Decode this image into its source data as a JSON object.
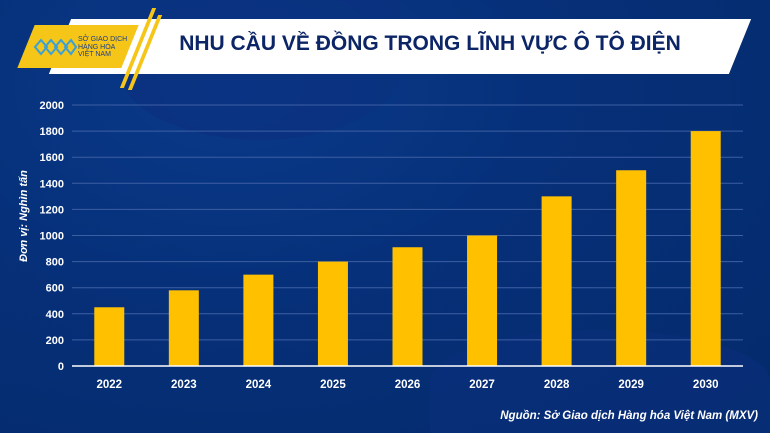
{
  "header": {
    "title": "NHU CẦU VỀ ĐỒNG TRONG LĨNH VỰC Ô TÔ ĐIỆN",
    "logo_lines": [
      "SỞ GIAO DỊCH",
      "HÀNG HÓA",
      "VIỆT NAM"
    ]
  },
  "colors": {
    "bar": "#ffc000",
    "background": "#06307a",
    "title": "#0c2566",
    "accent": "#f5c518"
  },
  "chart_data": {
    "type": "bar",
    "title": "NHU CẦU VỀ ĐỒNG TRONG LĨNH VỰC Ô TÔ ĐIỆN",
    "categories": [
      "2022",
      "2023",
      "2024",
      "2025",
      "2026",
      "2027",
      "2028",
      "2029",
      "2030"
    ],
    "values": [
      450,
      580,
      700,
      800,
      910,
      1000,
      1300,
      1500,
      1800
    ],
    "ylabel": "Đơn vị: Nghìn tấn",
    "xlabel": "",
    "ylim": [
      0,
      2000
    ],
    "yticks": [
      "0",
      "200",
      "400",
      "600",
      "800",
      "1000",
      "1200",
      "1400",
      "1600",
      "1800",
      "2000"
    ],
    "grid": true
  },
  "footer": {
    "source": "Nguồn: Sở Giao dịch Hàng hóa Việt Nam (MXV)"
  }
}
